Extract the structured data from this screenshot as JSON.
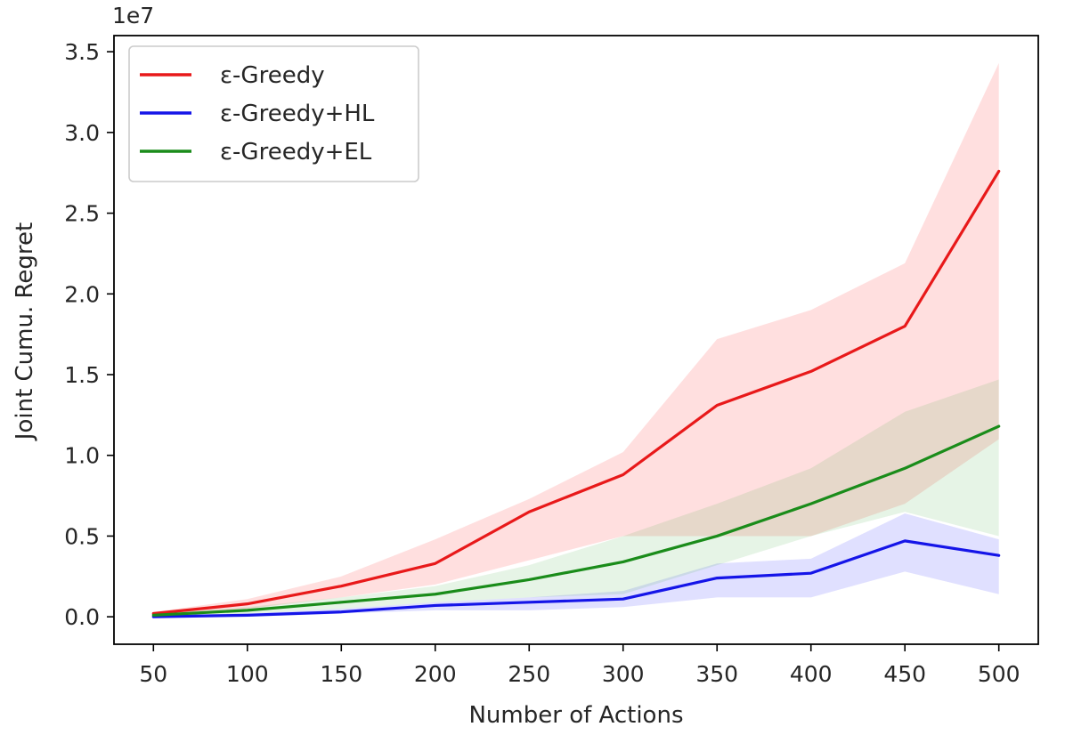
{
  "chart_data": {
    "type": "line",
    "title": "",
    "xlabel": "Number of Actions",
    "ylabel": "Joint Cumu. Regret",
    "y_scale_label": "1e7",
    "x": [
      50,
      100,
      150,
      200,
      250,
      300,
      350,
      400,
      450,
      500
    ],
    "xlim": [
      29,
      521
    ],
    "ylim": [
      -0.17,
      3.6
    ],
    "xticks": [
      "50",
      "100",
      "150",
      "200",
      "250",
      "300",
      "350",
      "400",
      "450",
      "500"
    ],
    "yticks": [
      "0.0",
      "0.5",
      "1.0",
      "1.5",
      "2.0",
      "2.5",
      "3.0",
      "3.5"
    ],
    "ytick_values": [
      0,
      0.5,
      1.0,
      1.5,
      2.0,
      2.5,
      3.0,
      3.5
    ],
    "grid": false,
    "legend_position": "top-left",
    "series": [
      {
        "name": "ε-Greedy",
        "color": "#e8191a",
        "fill": "rgba(255,80,80,0.18)",
        "values": [
          0.02,
          0.08,
          0.19,
          0.33,
          0.65,
          0.88,
          1.31,
          1.52,
          1.8,
          2.76
        ],
        "lower": [
          0.01,
          0.05,
          0.12,
          0.2,
          0.35,
          0.5,
          0.5,
          0.5,
          0.7,
          1.1
        ],
        "upper": [
          0.03,
          0.11,
          0.25,
          0.48,
          0.73,
          1.02,
          1.72,
          1.9,
          2.19,
          3.43
        ]
      },
      {
        "name": "ε-Greedy+HL",
        "color": "#1515e8",
        "fill": "rgba(60,60,255,0.16)",
        "values": [
          0.0,
          0.01,
          0.03,
          0.07,
          0.09,
          0.11,
          0.24,
          0.27,
          0.47,
          0.38
        ],
        "lower": [
          0.0,
          0.0,
          0.02,
          0.04,
          0.04,
          0.06,
          0.12,
          0.12,
          0.28,
          0.14
        ],
        "upper": [
          0.01,
          0.02,
          0.05,
          0.09,
          0.12,
          0.16,
          0.33,
          0.36,
          0.64,
          0.48
        ]
      },
      {
        "name": "ε-Greedy+EL",
        "color": "#1a8c1a",
        "fill": "rgba(60,170,60,0.13)",
        "values": [
          0.01,
          0.04,
          0.09,
          0.14,
          0.23,
          0.34,
          0.5,
          0.7,
          0.92,
          1.18
        ],
        "lower": [
          0.0,
          0.02,
          0.05,
          0.09,
          0.12,
          0.14,
          0.32,
          0.5,
          0.65,
          0.5
        ],
        "upper": [
          0.02,
          0.06,
          0.12,
          0.19,
          0.32,
          0.5,
          0.7,
          0.92,
          1.27,
          1.47
        ]
      }
    ]
  }
}
